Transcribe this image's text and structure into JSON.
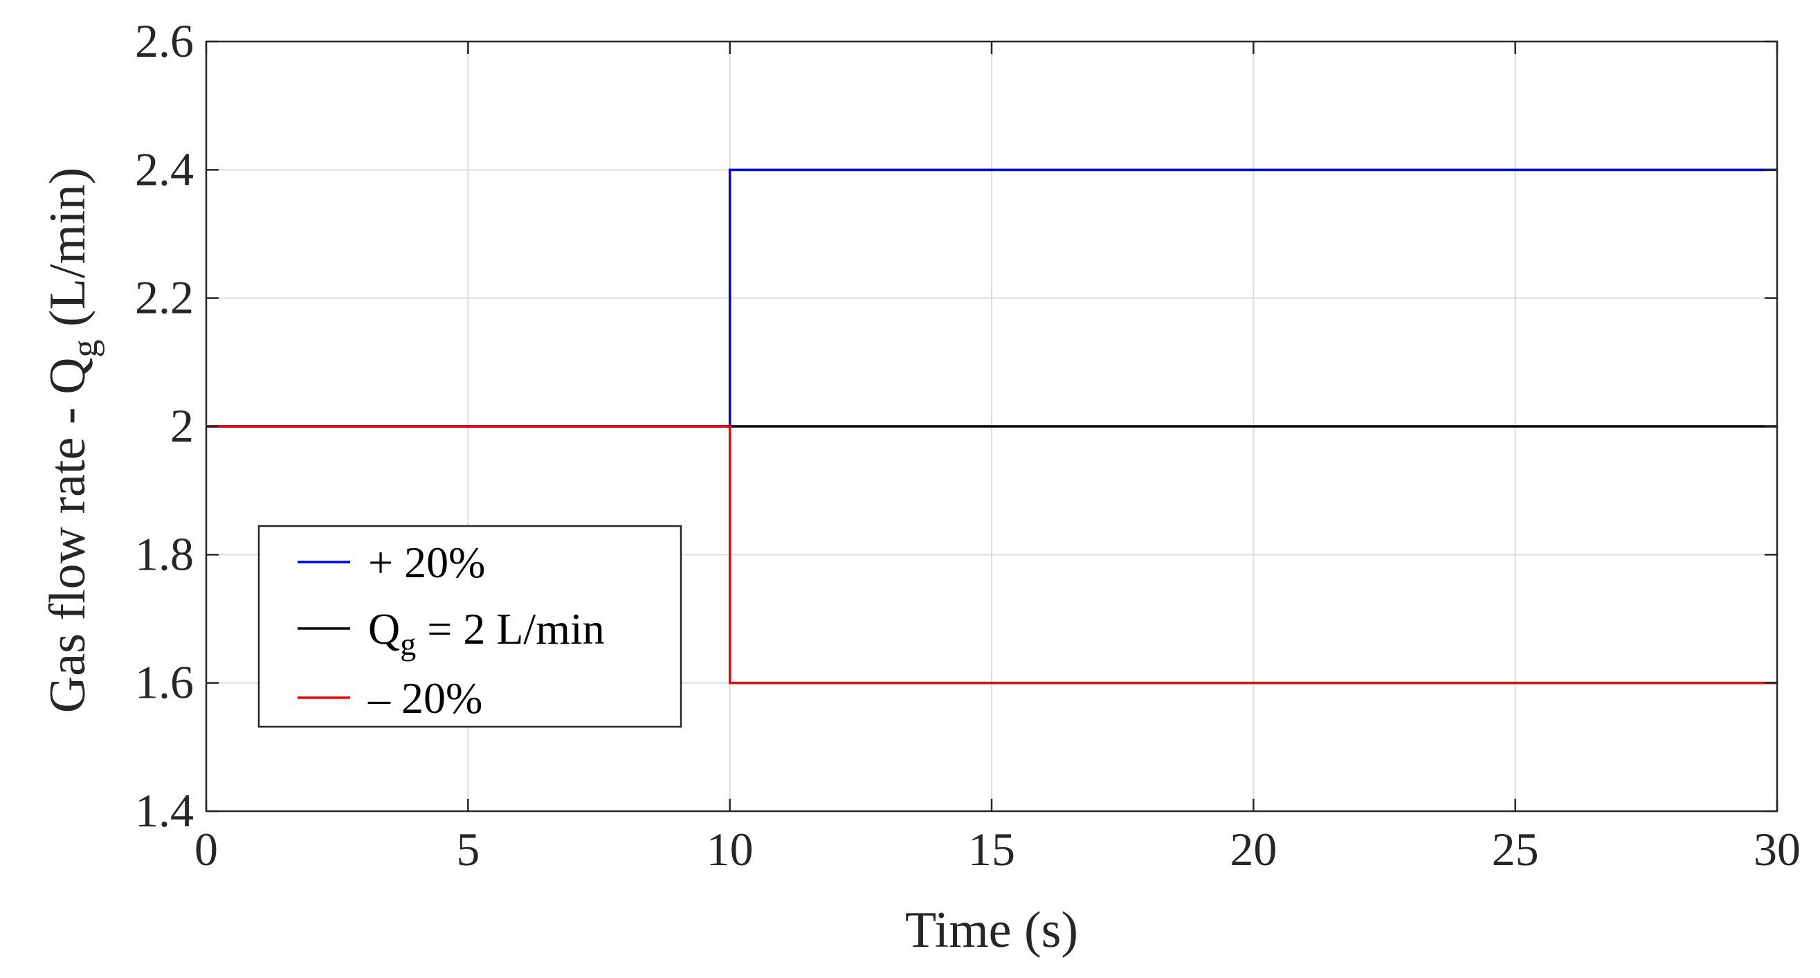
{
  "chart_data": {
    "type": "line",
    "xlabel": "Time (s)",
    "ylabel": {
      "main": "Gas flow rate - Q",
      "sub": "g",
      "unit": " (L/min)"
    },
    "xlim": [
      0,
      30
    ],
    "ylim": [
      1.4,
      2.6
    ],
    "xticks": [
      0,
      5,
      10,
      15,
      20,
      25,
      30
    ],
    "xtick_labels": [
      "0",
      "5",
      "10",
      "15",
      "20",
      "25",
      "30"
    ],
    "yticks": [
      1.4,
      1.6,
      1.8,
      2.0,
      2.2,
      2.4,
      2.6
    ],
    "ytick_labels": [
      "1.4",
      "1.6",
      "1.8",
      "2",
      "2.2",
      "2.4",
      "2.6"
    ],
    "grid": true,
    "legend_position": "lower-left",
    "series": [
      {
        "name": "+ 20%",
        "color": "#0000ff",
        "x": [
          0,
          10,
          10,
          30
        ],
        "y": [
          2.0,
          2.0,
          2.4,
          2.4
        ]
      },
      {
        "name": "Q",
        "name_sub": "g",
        "name_rest": " = 2 L/min",
        "color": "#000000",
        "x": [
          0,
          30
        ],
        "y": [
          2.0,
          2.0
        ]
      },
      {
        "name": "– 20%",
        "color": "#ff0000",
        "x": [
          0,
          10,
          10,
          30
        ],
        "y": [
          2.0,
          2.0,
          1.6,
          1.6
        ]
      }
    ]
  }
}
